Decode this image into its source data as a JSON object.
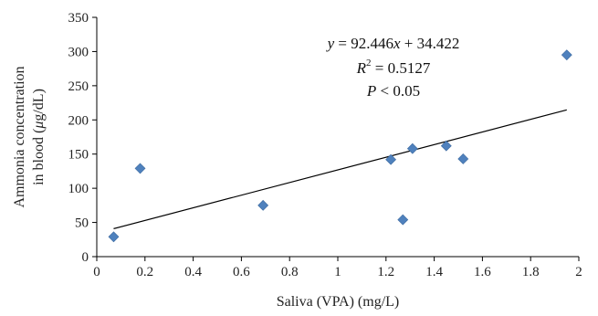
{
  "chart_data": {
    "type": "scatter",
    "title": "",
    "xlabel": "Saliva (VPA) (mg/L)",
    "ylabel_line1": "Ammonia concentration",
    "ylabel_line2_prefix": "in blood (",
    "ylabel_line2_mu": "μ",
    "ylabel_line2_suffix": "g/dL)",
    "xlim": [
      0,
      2
    ],
    "ylim": [
      0,
      350
    ],
    "xticks": [
      0,
      0.2,
      0.4,
      0.6,
      0.8,
      1,
      1.2,
      1.4,
      1.6,
      1.8,
      2
    ],
    "xtick_labels": [
      "0",
      "0.2",
      "0.4",
      "0.6",
      "0.8",
      "1",
      "1.2",
      "1.4",
      "1.6",
      "1.8",
      "2"
    ],
    "yticks": [
      0,
      50,
      100,
      150,
      200,
      250,
      300,
      350
    ],
    "ytick_labels": [
      "0",
      "50",
      "100",
      "150",
      "200",
      "250",
      "300",
      "350"
    ],
    "grid": false,
    "marker_color": "#4f81bd",
    "points": [
      {
        "x": 0.07,
        "y": 29
      },
      {
        "x": 0.18,
        "y": 129
      },
      {
        "x": 0.69,
        "y": 75
      },
      {
        "x": 1.22,
        "y": 142
      },
      {
        "x": 1.27,
        "y": 54
      },
      {
        "x": 1.31,
        "y": 158
      },
      {
        "x": 1.45,
        "y": 162
      },
      {
        "x": 1.52,
        "y": 143
      },
      {
        "x": 1.95,
        "y": 295
      }
    ],
    "trendline": {
      "slope": 92.446,
      "intercept": 34.422,
      "x_range": [
        0.07,
        1.95
      ]
    },
    "annotations": {
      "equation_var_y": "y",
      "equation_eq": " = 92.446",
      "equation_var_x": "x",
      "equation_rest": " + 34.422",
      "r2_var": "R",
      "r2_sup": "2",
      "r2_rest": " = 0.5127",
      "p_var": "P",
      "p_rest": " < 0.05"
    }
  }
}
